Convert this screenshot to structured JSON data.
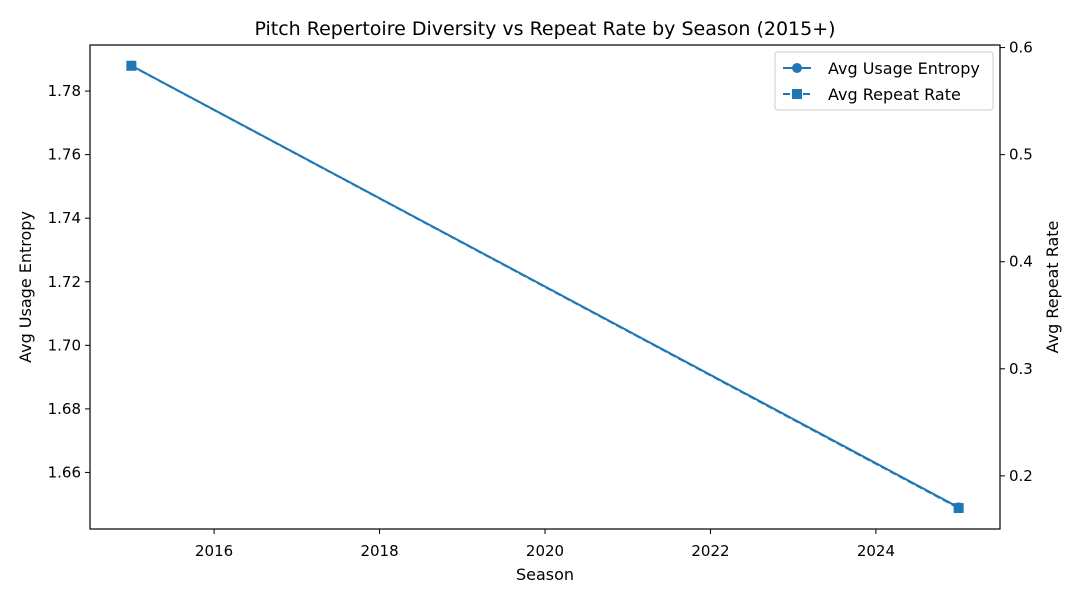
{
  "chart_data": {
    "type": "line",
    "title": "Pitch Repertoire Diversity vs Repeat Rate by Season (2015+)",
    "xlabel": "Season",
    "ylabel_left": "Avg Usage Entropy",
    "ylabel_right": "Avg Repeat Rate",
    "xlim": [
      2014.5,
      2025.5
    ],
    "ylim_left": [
      1.6422,
      1.7945
    ],
    "ylim_right": [
      0.1504,
      0.6024
    ],
    "x_ticks": [
      2016,
      2018,
      2020,
      2022,
      2024
    ],
    "y_ticks_left": [
      1.66,
      1.68,
      1.7,
      1.72,
      1.74,
      1.76,
      1.78
    ],
    "y_ticks_right": [
      0.2,
      0.3,
      0.4,
      0.5,
      0.6
    ],
    "x_tick_labels": [
      "2016",
      "2018",
      "2020",
      "2022",
      "2024"
    ],
    "y_tick_labels_left": [
      "1.66",
      "1.68",
      "1.70",
      "1.72",
      "1.74",
      "1.76",
      "1.78"
    ],
    "y_tick_labels_right": [
      "0.2",
      "0.3",
      "0.4",
      "0.5",
      "0.6"
    ],
    "grid": false,
    "legend_position": "top-right",
    "series": [
      {
        "name": "Avg Usage Entropy",
        "axis": "left",
        "marker": "circle",
        "linestyle": "solid",
        "color": "#1f77b4",
        "x": [
          2015,
          2025
        ],
        "y": [
          1.788,
          1.649
        ]
      },
      {
        "name": "Avg Repeat Rate",
        "axis": "right",
        "marker": "square",
        "linestyle": "dashed",
        "color": "#1f77b4",
        "x": [
          2015,
          2025
        ],
        "y": [
          0.583,
          0.17
        ]
      }
    ]
  }
}
